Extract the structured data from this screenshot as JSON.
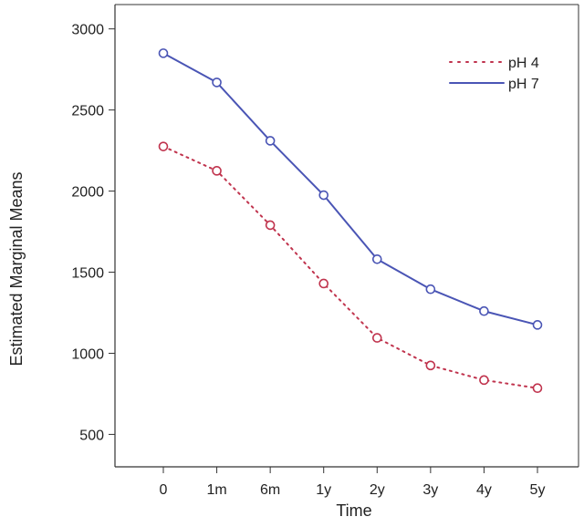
{
  "chart_data": {
    "type": "line",
    "xlabel": "Time",
    "ylabel": "Estimated Marginal Means",
    "categories": [
      "0",
      "1m",
      "6m",
      "1y",
      "2y",
      "3y",
      "4y",
      "5y"
    ],
    "ylim": [
      300,
      3150
    ],
    "yticks": [
      500,
      1000,
      1500,
      2000,
      2500,
      3000
    ],
    "grid": false,
    "legend_position": "top-right",
    "series": [
      {
        "name": "pH 4",
        "color": "#c0334d",
        "line_style": "dotted",
        "marker": "circle",
        "values": [
          2275,
          2125,
          1790,
          1430,
          1095,
          925,
          835,
          785
        ]
      },
      {
        "name": "pH 7",
        "color": "#4a55b5",
        "line_style": "solid",
        "marker": "circle",
        "values": [
          2850,
          2670,
          2310,
          1975,
          1580,
          1395,
          1260,
          1175
        ]
      }
    ]
  }
}
